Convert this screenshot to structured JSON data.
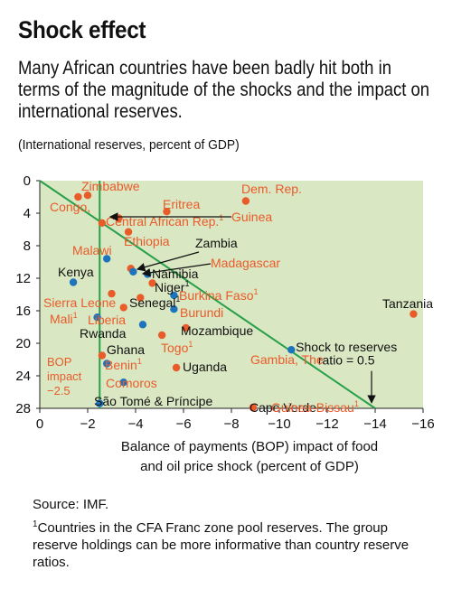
{
  "header": {
    "title": "Shock effect",
    "subtitle": "Many African countries have been badly hit both in terms of the magnitude of the shocks and the impact on international reserves.",
    "units": "(International reserves, percent of GDP)"
  },
  "footer": {
    "source": "Source: IMF.",
    "footnote_mark": "1",
    "footnote": "Countries in the CFA Franc zone pool reserves. The group reserve holdings can be more informative than country reserve ratios."
  },
  "colors": {
    "plot_bg": "#d9e7c2",
    "line": "#27a04a",
    "orange": "#ea5b2a",
    "blue": "#1d74bc",
    "text_orange": "#ea5b2a",
    "text_dark": "#111111"
  },
  "chart_data": {
    "type": "scatter",
    "xlabel_line1": "Balance of payments (BOP) impact of food",
    "xlabel_line2": "and oil price shock (percent of GDP)",
    "xlim": [
      0,
      -16
    ],
    "ylim": [
      0,
      28
    ],
    "y_inverted": true,
    "x_ticks": [
      0,
      -2,
      -4,
      -6,
      -8,
      -10,
      -12,
      -14,
      -16
    ],
    "x_tick_labels": [
      "0",
      "−2",
      "−4",
      "−6",
      "−8",
      "−10",
      "−12",
      "−14",
      "−16"
    ],
    "y_ticks": [
      0,
      4,
      8,
      12,
      16,
      20,
      24,
      28
    ],
    "y_tick_labels": [
      "0",
      "4",
      "8",
      "12",
      "16",
      "20",
      "24",
      "28"
    ],
    "reference_lines": [
      {
        "id": "bop",
        "type": "vertical",
        "x": -2.5,
        "label_lines": [
          "BOP",
          "impact",
          "−2.5"
        ]
      },
      {
        "id": "ratio",
        "type": "diagonal",
        "from": [
          0,
          0
        ],
        "to": [
          -14,
          28
        ],
        "label_lines": [
          "Shock to reserves",
          "ratio = 0.5"
        ]
      }
    ],
    "points": [
      {
        "name": "Zimbabwe",
        "x": -1.6,
        "y": 2.0,
        "group": "orange"
      },
      {
        "name": "Congo, Dem. Rep.",
        "x": -2.0,
        "y": 1.8,
        "group": "orange"
      },
      {
        "name": "Eritrea",
        "x": -8.6,
        "y": 2.5,
        "group": "orange"
      },
      {
        "name": "Guinea",
        "x": -5.3,
        "y": 3.8,
        "group": "orange"
      },
      {
        "name": "Central African Rep.",
        "x": -3.3,
        "y": 4.6,
        "group": "orange",
        "footnote": "1"
      },
      {
        "name": "Ethiopia",
        "x": -2.6,
        "y": 5.2,
        "group": "orange"
      },
      {
        "name": "Malawi",
        "x": -3.7,
        "y": 6.3,
        "group": "orange"
      },
      {
        "name": "Zambia",
        "x": -2.8,
        "y": 9.6,
        "group": "blue"
      },
      {
        "name": "Madagascar",
        "x": -3.8,
        "y": 10.8,
        "group": "orange"
      },
      {
        "name": "Namibia",
        "x": -3.9,
        "y": 11.2,
        "group": "blue"
      },
      {
        "name": "Kenya",
        "x": -4.5,
        "y": 11.5,
        "group": "blue"
      },
      {
        "name": "Niger",
        "x": -1.4,
        "y": 12.5,
        "group": "blue",
        "footnote": "1"
      },
      {
        "name": "Sierra Leone",
        "x": -4.7,
        "y": 12.6,
        "group": "orange"
      },
      {
        "name": "Burkina Faso",
        "x": -3.0,
        "y": 13.9,
        "group": "orange",
        "footnote": "1"
      },
      {
        "name": "Senegal",
        "x": -5.6,
        "y": 14.1,
        "group": "blue",
        "footnote": "1"
      },
      {
        "name": "Burundi",
        "x": -4.2,
        "y": 14.4,
        "group": "orange"
      },
      {
        "name": "Tanzania",
        "x": -5.6,
        "y": 15.8,
        "group": "blue"
      },
      {
        "name": "Liberia",
        "x": -15.6,
        "y": 16.4,
        "group": "orange"
      },
      {
        "name": "Mali",
        "x": -3.5,
        "y": 15.6,
        "group": "orange",
        "footnote": "1"
      },
      {
        "name": "Rwanda",
        "x": -2.4,
        "y": 16.8,
        "group": "blue"
      },
      {
        "name": "Mozambique",
        "x": -4.3,
        "y": 17.7,
        "group": "blue"
      },
      {
        "name": "Togo",
        "x": -6.1,
        "y": 18.1,
        "group": "orange",
        "footnote": "1"
      },
      {
        "name": "Gambia, The",
        "x": -5.1,
        "y": 19.0,
        "group": "orange"
      },
      {
        "name": "Ghana",
        "x": -10.5,
        "y": 20.8,
        "group": "blue"
      },
      {
        "name": "Benin",
        "x": -2.6,
        "y": 21.5,
        "group": "orange",
        "footnote": "1"
      },
      {
        "name": "Uganda",
        "x": -2.8,
        "y": 22.5,
        "group": "blue"
      },
      {
        "name": "Comoros",
        "x": -5.7,
        "y": 23.0,
        "group": "orange"
      },
      {
        "name": "Cape Verde",
        "x": -3.5,
        "y": 24.8,
        "group": "blue"
      },
      {
        "name": "São Tomé & Príncipe",
        "x": -2.5,
        "y": 27.4,
        "group": "blue"
      },
      {
        "name": "Guinea-Bissau",
        "x": -8.9,
        "y": 27.9,
        "group": "orange",
        "footnote": "1"
      }
    ],
    "labels": [
      {
        "text": "Zimbabwe",
        "color": "orange"
      },
      {
        "text": "Congo,",
        "color": "orange"
      },
      {
        "text": "Dem. Rep.",
        "color": "orange"
      },
      {
        "text": "Eritrea",
        "color": "orange"
      },
      {
        "text": "Guinea",
        "color": "orange"
      },
      {
        "text": "Central African Rep.",
        "color": "orange",
        "sup": "1"
      },
      {
        "text": "Ethiopia",
        "color": "orange"
      },
      {
        "text": "Malawi",
        "color": "orange"
      },
      {
        "text": "Zambia",
        "color": "dark"
      },
      {
        "text": "Madagascar",
        "color": "orange"
      },
      {
        "text": "Namibia",
        "color": "dark"
      },
      {
        "text": "Kenya",
        "color": "dark"
      },
      {
        "text": "Niger",
        "color": "dark",
        "sup": "1"
      },
      {
        "text": "Sierra Leone",
        "color": "orange"
      },
      {
        "text": "Burkina Faso",
        "color": "orange",
        "sup": "1"
      },
      {
        "text": "Senegal",
        "color": "dark",
        "sup": "1"
      },
      {
        "text": "Burundi",
        "color": "orange"
      },
      {
        "text": "Tanzania",
        "color": "dark"
      },
      {
        "text": "Liberia",
        "color": "orange"
      },
      {
        "text": "Mali",
        "color": "orange",
        "sup": "1"
      },
      {
        "text": "Rwanda",
        "color": "dark"
      },
      {
        "text": "Mozambique",
        "color": "dark"
      },
      {
        "text": "Togo",
        "color": "orange",
        "sup": "1"
      },
      {
        "text": "Gambia, The",
        "color": "orange"
      },
      {
        "text": "Ghana",
        "color": "dark"
      },
      {
        "text": "Benin",
        "color": "orange",
        "sup": "1"
      },
      {
        "text": "Uganda",
        "color": "dark"
      },
      {
        "text": "Comoros",
        "color": "orange"
      },
      {
        "text": "Cape Verde",
        "color": "dark"
      },
      {
        "text": "São Tomé & Príncipe",
        "color": "dark"
      },
      {
        "text": "Guinea-Bissau",
        "color": "orange",
        "sup": "1"
      }
    ]
  }
}
